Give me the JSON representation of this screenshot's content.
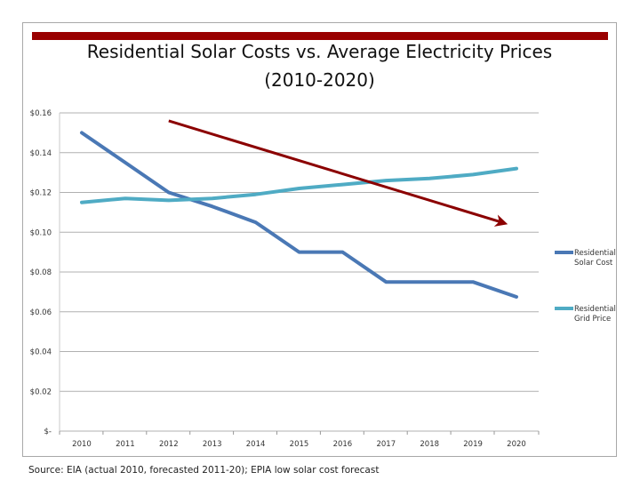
{
  "colors": {
    "title_bar": "#990000",
    "solar": "#4a78b5",
    "grid_price": "#4fabc4",
    "trend_arrow": "#8b0000",
    "gridline": "#b0b0b0"
  },
  "chart_data": {
    "type": "line",
    "title": "Residential Solar Costs vs. Average Electricity Prices",
    "subtitle": "(2010-2020)",
    "xlabel": "",
    "ylabel": "",
    "categories": [
      "2010",
      "2011",
      "2012",
      "2013",
      "2014",
      "2015",
      "2016",
      "2017",
      "2018",
      "2019",
      "2020"
    ],
    "series": [
      {
        "name": "Residential Solar Cost",
        "legend_lines": [
          "Residential",
          "Solar Cost"
        ],
        "values": [
          0.15,
          0.135,
          0.12,
          0.113,
          0.105,
          0.09,
          0.09,
          0.075,
          0.075,
          0.075,
          0.0675
        ]
      },
      {
        "name": "Residential Grid Price",
        "legend_lines": [
          "Residential",
          "Grid Price"
        ],
        "values": [
          0.115,
          0.117,
          0.116,
          0.117,
          0.119,
          0.122,
          0.124,
          0.126,
          0.127,
          0.129,
          0.132
        ]
      }
    ],
    "ylim": [
      0,
      0.16
    ],
    "yticks": [
      0,
      0.02,
      0.04,
      0.06,
      0.08,
      0.1,
      0.12,
      0.14,
      0.16
    ],
    "ytick_labels": [
      "$-",
      "$0.02",
      "$0.04",
      "$0.06",
      "$0.08",
      "$0.10",
      "$0.12",
      "$0.14",
      "$0.16"
    ],
    "grid": true,
    "legend_position": "right",
    "annotation": {
      "type": "arrow",
      "description": "downward trend arrow",
      "from": {
        "x": 2012.0,
        "y": 0.156
      },
      "to": {
        "x": 2019.8,
        "y": 0.104
      }
    }
  },
  "source_note": "Source: EIA (actual 2010, forecasted 2011-20); EPIA low solar cost forecast"
}
